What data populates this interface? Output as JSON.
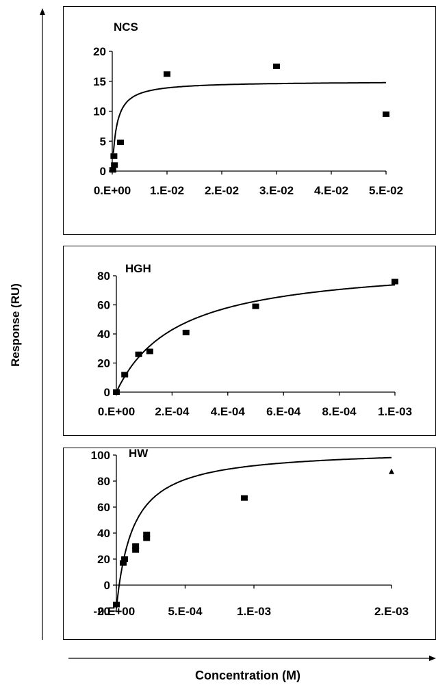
{
  "figure": {
    "y_axis_label": "Response (RU)",
    "x_axis_label": "Concentration (M)"
  },
  "chart_data": [
    {
      "type": "scatter",
      "title": "NCS",
      "xlim": [
        0,
        0.05
      ],
      "ylim": [
        0,
        20
      ],
      "x_ticks": [
        0,
        0.01,
        0.02,
        0.03,
        0.04,
        0.05
      ],
      "x_tick_labels": [
        "0.E+00",
        "1.E-02",
        "2.E-02",
        "3.E-02",
        "4.E-02",
        "5.E-02"
      ],
      "y_ticks": [
        0,
        5,
        10,
        15,
        20
      ],
      "y_tick_labels": [
        "0",
        "5",
        "10",
        "15",
        "20"
      ],
      "points": [
        {
          "x": 0.0001,
          "y": 0.2
        },
        {
          "x": 0.0004,
          "y": 1.0
        },
        {
          "x": 0.0003,
          "y": 2.5
        },
        {
          "x": 0.0015,
          "y": 4.8
        },
        {
          "x": 0.01,
          "y": 16.2
        },
        {
          "x": 0.03,
          "y": 17.5
        },
        {
          "x": 0.05,
          "y": 9.5
        }
      ],
      "fit": {
        "model": "binding_saturation",
        "bmax": 15,
        "kd": 0.0008,
        "x_start": 0.0002,
        "x_end": 0.05
      }
    },
    {
      "type": "scatter",
      "title": "HGH",
      "xlim": [
        0,
        0.001
      ],
      "ylim": [
        0,
        80
      ],
      "x_ticks": [
        0,
        0.0002,
        0.0004,
        0.0006,
        0.0008,
        0.001
      ],
      "x_tick_labels": [
        "0.E+00",
        "2.E-04",
        "4.E-04",
        "6.E-04",
        "8.E-04",
        "1.E-03"
      ],
      "y_ticks": [
        0,
        20,
        40,
        60,
        80
      ],
      "y_tick_labels": [
        "0",
        "20",
        "40",
        "60",
        "80"
      ],
      "points": [
        {
          "x": 0.0,
          "y": 0
        },
        {
          "x": 3e-05,
          "y": 12
        },
        {
          "x": 8e-05,
          "y": 26
        },
        {
          "x": 0.00012,
          "y": 28
        },
        {
          "x": 0.00025,
          "y": 41
        },
        {
          "x": 0.0005,
          "y": 59
        },
        {
          "x": 0.001,
          "y": 76
        }
      ],
      "fit": {
        "model": "binding_saturation",
        "bmax": 90,
        "kd": 0.00022,
        "x_start": 0.0,
        "x_end": 0.001
      }
    },
    {
      "type": "scatter",
      "title": "HW",
      "xlim": [
        0,
        0.002
      ],
      "ylim": [
        -20,
        100
      ],
      "x_ticks": [
        0,
        0.0005,
        0.001,
        0.002
      ],
      "x_tick_labels": [
        "0.E+00",
        "5.E-04",
        "1.E-03",
        "2.E-03"
      ],
      "y_ticks": [
        -20,
        0,
        20,
        40,
        60,
        80,
        100
      ],
      "y_tick_labels": [
        "-20",
        "0",
        "20",
        "40",
        "60",
        "80",
        "100"
      ],
      "points": [
        {
          "x": 0.0,
          "y": -15
        },
        {
          "x": 5e-05,
          "y": 17
        },
        {
          "x": 6e-05,
          "y": 20
        },
        {
          "x": 0.00014,
          "y": 27
        },
        {
          "x": 0.00014,
          "y": 30
        },
        {
          "x": 0.00022,
          "y": 36
        },
        {
          "x": 0.00022,
          "y": 39
        },
        {
          "x": 0.00093,
          "y": 67
        },
        {
          "x": 0.002,
          "y": 87
        }
      ],
      "fit": {
        "model": "binding_saturation_offset",
        "bmax": 105,
        "kd": 0.00012,
        "offset": -18,
        "x_start": 0.0,
        "x_end": 0.002
      }
    }
  ]
}
